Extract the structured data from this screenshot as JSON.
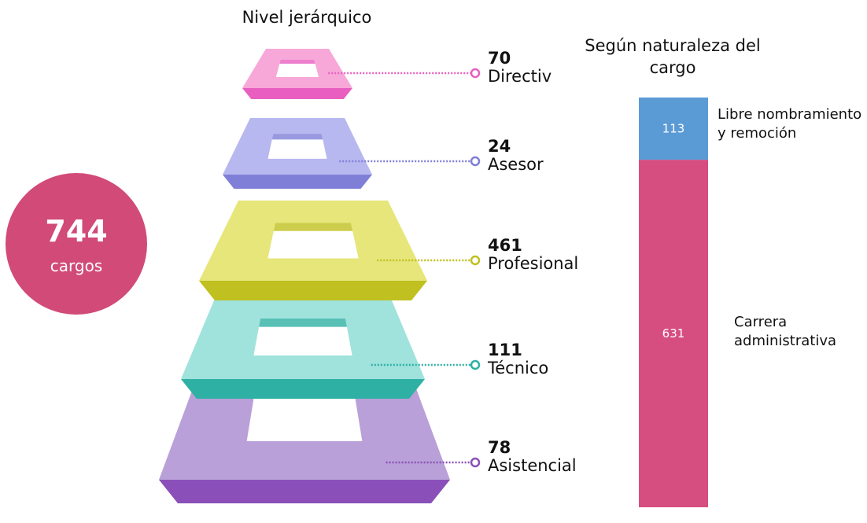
{
  "total": {
    "value": 744,
    "label": "cargos"
  },
  "pyramid": {
    "title": "Nivel jerárquico",
    "levels": [
      {
        "value": 70,
        "label": "Directiv"
      },
      {
        "value": 24,
        "label": "Asesor"
      },
      {
        "value": 461,
        "label": "Profesional"
      },
      {
        "value": 111,
        "label": "Técnico"
      },
      {
        "value": 78,
        "label": "Asistencial"
      }
    ]
  },
  "chart_data": {
    "type": "stacked-bar",
    "title": "Según naturaleza del cargo",
    "series": [
      {
        "name": "Carrera administrativa",
        "color": "#d64d80",
        "values": [
          631
        ]
      },
      {
        "name": "Libre nombramiento y remoción",
        "color": "#5b9bd5",
        "values": [
          113
        ]
      }
    ]
  }
}
